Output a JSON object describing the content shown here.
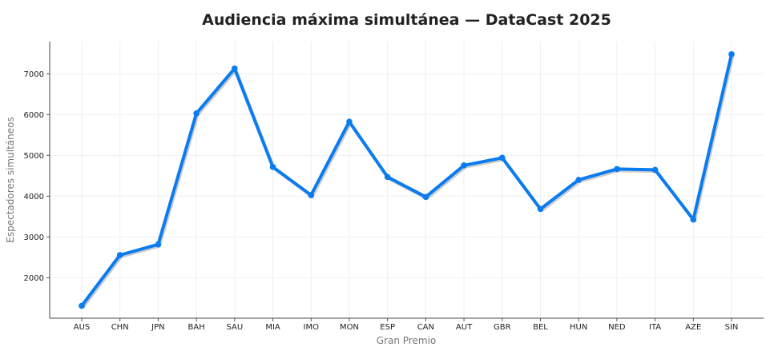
{
  "chart_data": {
    "type": "line",
    "title": "Audiencia máxima simultánea — DataCast 2025",
    "xlabel": "Gran Premio",
    "ylabel": "Espectadores simultáneos",
    "categories": [
      "AUS",
      "CHN",
      "JPN",
      "BAH",
      "SAU",
      "MIA",
      "IMO",
      "MON",
      "ESP",
      "CAN",
      "AUT",
      "GBR",
      "BEL",
      "HUN",
      "NED",
      "ITA",
      "AZE",
      "SIN"
    ],
    "series": [
      {
        "name": "Audiencia máxima",
        "color": "#0a7cf0",
        "values": [
          1310,
          2555,
          2815,
          6030,
          7130,
          4715,
          4025,
          5825,
          4470,
          3980,
          4755,
          4940,
          3685,
          4400,
          4665,
          4645,
          3425,
          7480
        ]
      }
    ],
    "yticks": [
      2000,
      3000,
      4000,
      5000,
      6000,
      7000
    ],
    "ylim": [
      1000,
      7780
    ],
    "grid": true,
    "legend": null
  }
}
